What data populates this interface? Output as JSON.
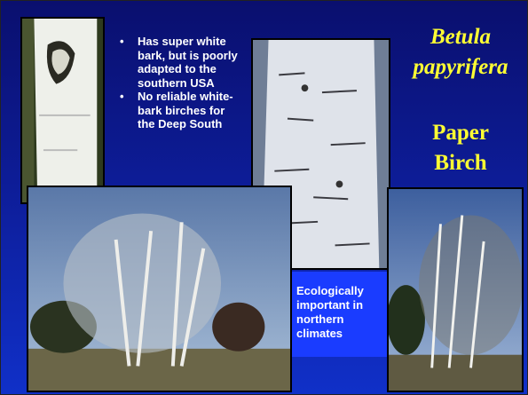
{
  "title": {
    "genus": "Betula",
    "species": "papyrifera",
    "common": [
      "Paper",
      "Birch"
    ]
  },
  "bullets": [
    "Has super white bark, but is poorly adapted to the southern USA",
    "No reliable white-bark birches for the Deep South"
  ],
  "caption": "Ecologically important in northern climates"
}
